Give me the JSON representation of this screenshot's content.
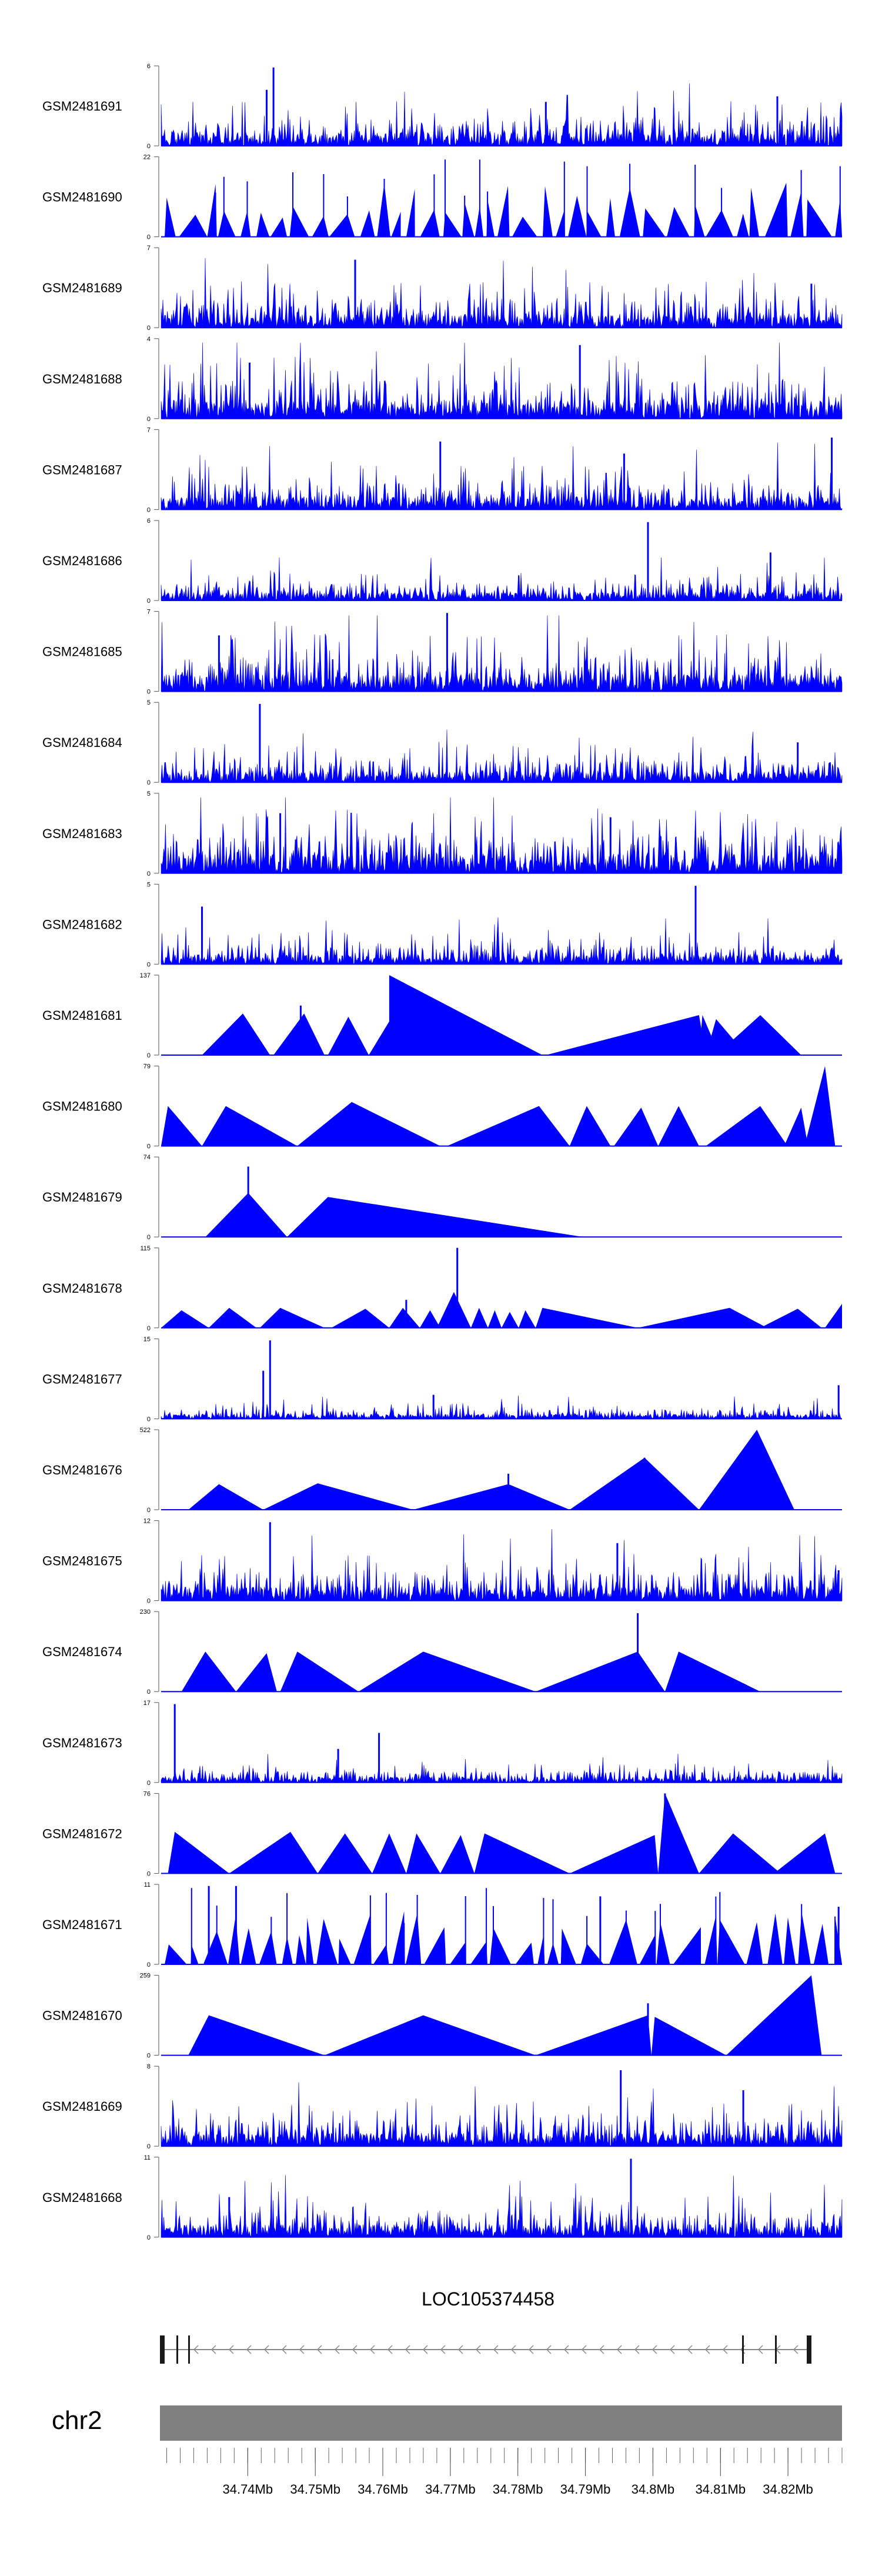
{
  "chart_data": {
    "type": "area",
    "title": "",
    "xlabel": "",
    "ylabel": "",
    "x_range_mb": [
      34.727,
      34.828
    ],
    "fill_color": "#0000FF",
    "tracks": [
      {
        "name": "GSM2481691",
        "ymax": "6",
        "ymin": "0",
        "style": "dense",
        "seed": 11,
        "level": 0.28,
        "peaks": [
          [
            0.165,
            0.98
          ],
          [
            0.155,
            0.7
          ],
          [
            0.905,
            0.62
          ],
          [
            0.565,
            0.55
          ]
        ],
        "triangles": []
      },
      {
        "name": "GSM2481690",
        "ymax": "22",
        "ymin": "0",
        "style": "sparse",
        "seed": 23,
        "level": 0.45,
        "peaks": [],
        "triangles": []
      },
      {
        "name": "GSM2481689",
        "ymax": "7",
        "ymin": "0",
        "style": "dense",
        "seed": 37,
        "level": 0.3,
        "peaks": [
          [
            0.285,
            0.85
          ],
          [
            0.955,
            0.55
          ]
        ],
        "triangles": []
      },
      {
        "name": "GSM2481688",
        "ymax": "4",
        "ymin": "0",
        "style": "dense",
        "seed": 41,
        "level": 0.4,
        "peaks": [
          [
            0.615,
            0.92
          ],
          [
            0.13,
            0.7
          ]
        ],
        "triangles": []
      },
      {
        "name": "GSM2481687",
        "ymax": "7",
        "ymin": "0",
        "style": "dense",
        "seed": 53,
        "level": 0.28,
        "peaks": [
          [
            0.985,
            0.9
          ],
          [
            0.41,
            0.85
          ],
          [
            0.68,
            0.7
          ]
        ],
        "triangles": []
      },
      {
        "name": "GSM2481686",
        "ymax": "6",
        "ymin": "0",
        "style": "dense",
        "seed": 61,
        "level": 0.18,
        "peaks": [
          [
            0.715,
            0.98
          ],
          [
            0.895,
            0.6
          ]
        ],
        "triangles": []
      },
      {
        "name": "GSM2481685",
        "ymax": "7",
        "ymin": "0",
        "style": "dense",
        "seed": 73,
        "level": 0.36,
        "peaks": [
          [
            0.42,
            0.98
          ],
          [
            0.085,
            0.7
          ]
        ],
        "triangles": []
      },
      {
        "name": "GSM2481684",
        "ymax": "5",
        "ymin": "0",
        "style": "dense",
        "seed": 83,
        "level": 0.24,
        "peaks": [
          [
            0.145,
            0.98
          ],
          [
            0.935,
            0.5
          ]
        ],
        "triangles": []
      },
      {
        "name": "GSM2481683",
        "ymax": "5",
        "ymin": "0",
        "style": "dense",
        "seed": 97,
        "level": 0.4,
        "peaks": [
          [
            0.175,
            0.75
          ],
          [
            0.66,
            0.7
          ]
        ],
        "triangles": []
      },
      {
        "name": "GSM2481682",
        "ymax": "5",
        "ymin": "0",
        "style": "dense",
        "seed": 101,
        "level": 0.2,
        "peaks": [
          [
            0.785,
            0.98
          ],
          [
            0.06,
            0.72
          ]
        ],
        "triangles": []
      },
      {
        "name": "GSM2481681",
        "ymax": "137",
        "ymin": "0",
        "style": "triangles",
        "seed": 0,
        "level": 0,
        "peaks": [
          [
            0.205,
            0.62
          ]
        ],
        "triangles": [
          [
            0.06,
            0.16,
            0.12,
            0.52
          ],
          [
            0.165,
            0.24,
            0.21,
            0.52
          ],
          [
            0.245,
            0.305,
            0.275,
            0.48
          ],
          [
            0.305,
            0.56,
            0.335,
            0.42
          ],
          [
            0.335,
            0.56,
            0.335,
            1.0
          ],
          [
            0.565,
            0.8,
            0.79,
            0.5
          ],
          [
            0.79,
            0.82,
            0.795,
            0.5
          ],
          [
            0.8,
            0.86,
            0.815,
            0.45
          ],
          [
            0.815,
            0.94,
            0.88,
            0.5
          ]
        ]
      },
      {
        "name": "GSM2481680",
        "ymax": "79",
        "ymin": "0",
        "style": "triangles",
        "seed": 0,
        "level": 0,
        "peaks": [],
        "triangles": [
          [
            0.0,
            0.06,
            0.01,
            0.5
          ],
          [
            0.06,
            0.2,
            0.095,
            0.5
          ],
          [
            0.2,
            0.41,
            0.28,
            0.55
          ],
          [
            0.42,
            0.6,
            0.555,
            0.5
          ],
          [
            0.6,
            0.66,
            0.625,
            0.5
          ],
          [
            0.665,
            0.73,
            0.705,
            0.48
          ],
          [
            0.73,
            0.79,
            0.76,
            0.5
          ],
          [
            0.8,
            0.92,
            0.88,
            0.5
          ],
          [
            0.915,
            0.95,
            0.94,
            0.48
          ],
          [
            0.945,
            0.99,
            0.975,
            1.0
          ]
        ]
      },
      {
        "name": "GSM2481679",
        "ymax": "74",
        "ymin": "0",
        "style": "triangles",
        "seed": 0,
        "level": 0,
        "peaks": [
          [
            0.128,
            0.88
          ]
        ],
        "triangles": [
          [
            0.065,
            0.185,
            0.128,
            0.55
          ],
          [
            0.185,
            0.62,
            0.245,
            0.5
          ]
        ]
      },
      {
        "name": "GSM2481678",
        "ymax": "115",
        "ymin": "0",
        "style": "triangles",
        "seed": 0,
        "level": 0,
        "peaks": [
          [
            0.36,
            0.35
          ],
          [
            0.435,
            1.0
          ]
        ],
        "triangles": [
          [
            0.0,
            0.07,
            0.03,
            0.22
          ],
          [
            0.07,
            0.14,
            0.1,
            0.25
          ],
          [
            0.145,
            0.24,
            0.175,
            0.25
          ],
          [
            0.25,
            0.335,
            0.3,
            0.24
          ],
          [
            0.335,
            0.38,
            0.355,
            0.25
          ],
          [
            0.38,
            0.41,
            0.395,
            0.22
          ],
          [
            0.405,
            0.455,
            0.43,
            0.45
          ],
          [
            0.455,
            0.48,
            0.467,
            0.25
          ],
          [
            0.48,
            0.5,
            0.49,
            0.22
          ],
          [
            0.5,
            0.525,
            0.512,
            0.2
          ],
          [
            0.525,
            0.55,
            0.535,
            0.22
          ],
          [
            0.55,
            0.7,
            0.56,
            0.25
          ],
          [
            0.7,
            0.89,
            0.835,
            0.25
          ],
          [
            0.88,
            0.97,
            0.935,
            0.24
          ],
          [
            0.975,
            1.0,
            1.0,
            0.3
          ]
        ]
      },
      {
        "name": "GSM2481677",
        "ymax": "15",
        "ymin": "0",
        "style": "dense",
        "seed": 113,
        "level": 0.1,
        "peaks": [
          [
            0.16,
            0.98
          ],
          [
            0.15,
            0.6
          ],
          [
            0.995,
            0.42
          ],
          [
            0.4,
            0.3
          ]
        ],
        "triangles": []
      },
      {
        "name": "GSM2481676",
        "ymax": "522",
        "ymin": "0",
        "style": "triangles",
        "seed": 0,
        "level": 0,
        "peaks": [
          [
            0.51,
            0.45
          ],
          [
            0.71,
            0.65
          ]
        ],
        "triangles": [
          [
            0.04,
            0.15,
            0.085,
            0.32
          ],
          [
            0.15,
            0.37,
            0.23,
            0.33
          ],
          [
            0.37,
            0.6,
            0.51,
            0.32
          ],
          [
            0.6,
            0.79,
            0.71,
            0.65
          ],
          [
            0.79,
            0.93,
            0.875,
            1.0
          ]
        ]
      },
      {
        "name": "GSM2481675",
        "ymax": "12",
        "ymin": "0",
        "style": "dense",
        "seed": 127,
        "level": 0.3,
        "peaks": [
          [
            0.16,
            0.98
          ],
          [
            0.67,
            0.72
          ],
          [
            0.995,
            0.38
          ]
        ],
        "triangles": []
      },
      {
        "name": "GSM2481674",
        "ymax": "230",
        "ymin": "0",
        "style": "triangles",
        "seed": 0,
        "level": 0,
        "peaks": [
          [
            0.7,
            0.98
          ]
        ],
        "triangles": [
          [
            0.03,
            0.11,
            0.065,
            0.5
          ],
          [
            0.11,
            0.17,
            0.155,
            0.48
          ],
          [
            0.175,
            0.29,
            0.2,
            0.5
          ],
          [
            0.29,
            0.55,
            0.385,
            0.5
          ],
          [
            0.55,
            0.74,
            0.7,
            0.5
          ],
          [
            0.74,
            0.88,
            0.76,
            0.5
          ]
        ]
      },
      {
        "name": "GSM2481673",
        "ymax": "17",
        "ymin": "0",
        "style": "dense",
        "seed": 139,
        "level": 0.12,
        "peaks": [
          [
            0.02,
            0.98
          ],
          [
            0.32,
            0.62
          ],
          [
            0.26,
            0.42
          ]
        ],
        "triangles": []
      },
      {
        "name": "GSM2481672",
        "ymax": "76",
        "ymin": "0",
        "style": "triangles",
        "seed": 0,
        "level": 0,
        "peaks": [
          [
            0.74,
            1.0
          ]
        ],
        "triangles": [
          [
            0.01,
            0.1,
            0.02,
            0.52
          ],
          [
            0.1,
            0.23,
            0.19,
            0.52
          ],
          [
            0.23,
            0.31,
            0.27,
            0.5
          ],
          [
            0.31,
            0.36,
            0.335,
            0.5
          ],
          [
            0.36,
            0.41,
            0.375,
            0.5
          ],
          [
            0.41,
            0.46,
            0.44,
            0.48
          ],
          [
            0.46,
            0.6,
            0.475,
            0.5
          ],
          [
            0.6,
            0.73,
            0.725,
            0.48
          ],
          [
            0.73,
            0.79,
            0.74,
            1.0
          ],
          [
            0.79,
            0.91,
            0.84,
            0.5
          ],
          [
            0.9,
            0.99,
            0.975,
            0.5
          ]
        ]
      },
      {
        "name": "GSM2481671",
        "ymax": "11",
        "ymin": "0",
        "style": "sparse",
        "seed": 149,
        "level": 0.42,
        "peaks": [
          [
            0.07,
            0.98
          ],
          [
            0.11,
            0.98
          ],
          [
            0.645,
            0.85
          ],
          [
            0.995,
            0.72
          ]
        ],
        "triangles": []
      },
      {
        "name": "GSM2481670",
        "ymax": "259",
        "ymin": "0",
        "style": "triangles",
        "seed": 0,
        "level": 0,
        "peaks": [
          [
            0.715,
            0.65
          ]
        ],
        "triangles": [
          [
            0.04,
            0.24,
            0.07,
            0.5
          ],
          [
            0.24,
            0.55,
            0.385,
            0.5
          ],
          [
            0.55,
            0.72,
            0.715,
            0.5
          ],
          [
            0.72,
            0.83,
            0.725,
            0.48
          ],
          [
            0.83,
            0.97,
            0.955,
            1.0
          ]
        ]
      },
      {
        "name": "GSM2481669",
        "ymax": "8",
        "ymin": "0",
        "style": "dense",
        "seed": 163,
        "level": 0.28,
        "peaks": [
          [
            0.675,
            0.95
          ],
          [
            0.855,
            0.7
          ]
        ],
        "triangles": []
      },
      {
        "name": "GSM2481668",
        "ymax": "11",
        "ymin": "0",
        "style": "dense",
        "seed": 173,
        "level": 0.26,
        "peaks": [
          [
            0.69,
            0.98
          ],
          [
            0.1,
            0.5
          ]
        ],
        "triangles": []
      }
    ],
    "gene": {
      "name": "LOC105374458",
      "strand": "-"
    },
    "chromosome": {
      "name": "chr2",
      "color": "#808080"
    },
    "axis": {
      "tick_labels": [
        "34.74Mb",
        "34.75Mb",
        "34.76Mb",
        "34.77Mb",
        "34.78Mb",
        "34.79Mb",
        "34.8Mb",
        "34.81Mb",
        "34.82Mb"
      ],
      "tick_values": [
        34.74,
        34.75,
        34.76,
        34.77,
        34.78,
        34.79,
        34.8,
        34.81,
        34.82
      ],
      "minor_step_mb": 0.002
    }
  }
}
